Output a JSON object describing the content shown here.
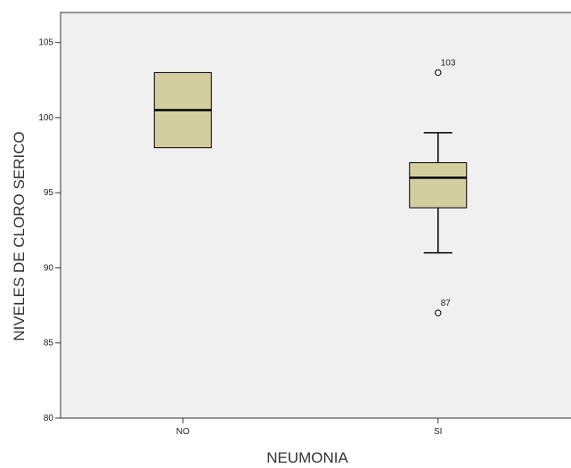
{
  "chart_data": {
    "type": "boxplot",
    "title": "",
    "xlabel": "NEUMONIA",
    "ylabel": "NIVELES DE CLORO SERICO",
    "ylim": [
      80,
      107
    ],
    "yticks": [
      80,
      85,
      90,
      95,
      100,
      105
    ],
    "ytick_labels": [
      "80",
      "85",
      "90",
      "95",
      "100",
      "105"
    ],
    "grid": false,
    "categories": [
      "NO",
      "SI"
    ],
    "boxes": [
      {
        "category": "NO",
        "whisker_low": 98,
        "q1": 98,
        "median": 100.5,
        "q3": 103,
        "whisker_high": 103,
        "outliers": []
      },
      {
        "category": "SI",
        "whisker_low": 91,
        "q1": 94,
        "median": 96,
        "q3": 97,
        "whisker_high": 99,
        "outliers": [
          {
            "value": 103,
            "label": "103"
          },
          {
            "value": 87,
            "label": "87"
          }
        ]
      }
    ]
  },
  "colors": {
    "plot_background": "#f0f0f0",
    "box_fill": "#d3ce9f",
    "stroke": "#000000",
    "axis": "#333333"
  }
}
